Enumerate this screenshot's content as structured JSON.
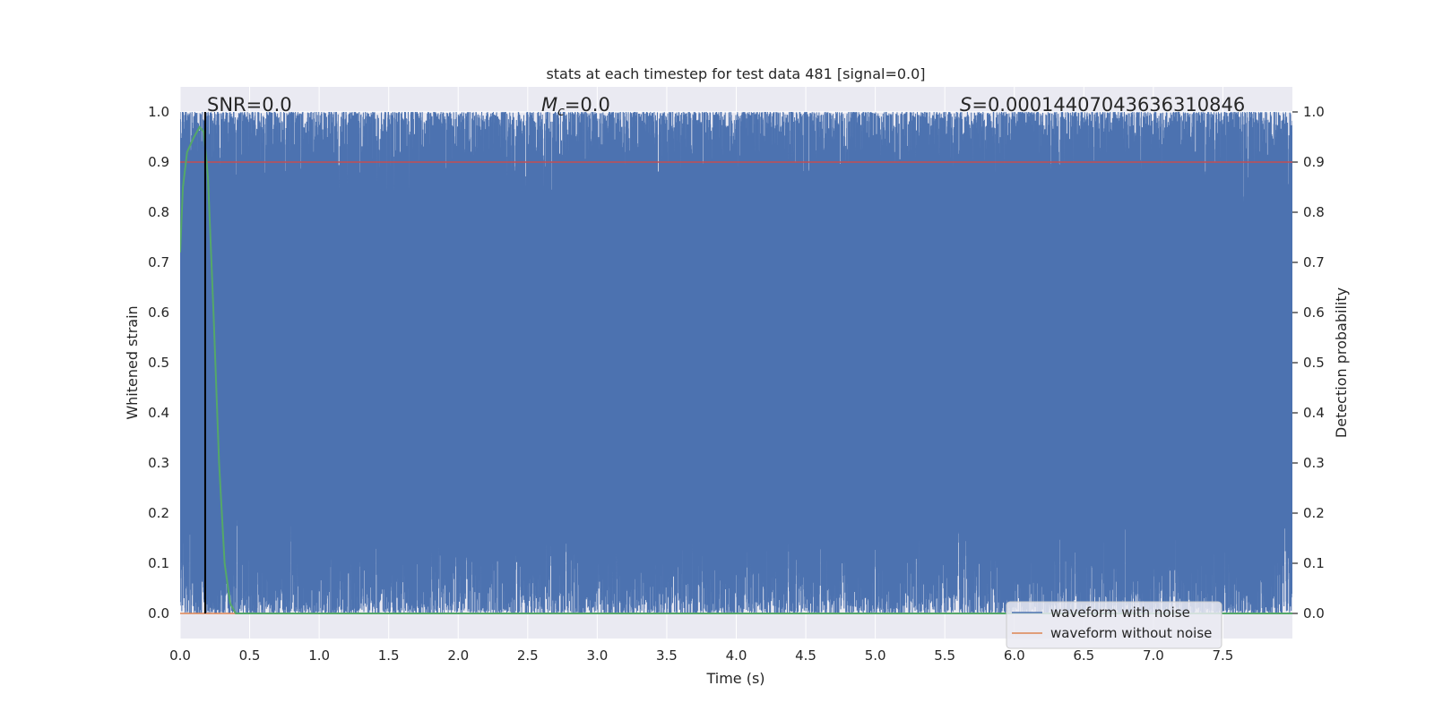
{
  "chart_data": {
    "type": "line",
    "title": "stats at each timestep for test data 481 [signal=0.0]",
    "xlabel": "Time (s)",
    "ylabel": "Whitened strain",
    "ylabel_right": "Detection probability",
    "xlim": [
      0.0,
      8.0
    ],
    "ylim": [
      -0.05,
      1.05
    ],
    "ylim_right": [
      -0.05,
      1.05
    ],
    "x_ticks": [
      0.0,
      0.5,
      1.0,
      1.5,
      2.0,
      2.5,
      3.0,
      3.5,
      4.0,
      4.5,
      5.0,
      5.5,
      6.0,
      6.5,
      7.0,
      7.5
    ],
    "x_tick_labels": [
      "0.0",
      "0.5",
      "1.0",
      "1.5",
      "2.0",
      "2.5",
      "3.0",
      "3.5",
      "4.0",
      "4.5",
      "5.0",
      "5.5",
      "6.0",
      "6.5",
      "7.0",
      "7.5"
    ],
    "y_ticks": [
      0.0,
      0.1,
      0.2,
      0.3,
      0.4,
      0.5,
      0.6,
      0.7,
      0.8,
      0.9,
      1.0
    ],
    "y_tick_labels": [
      "0.0",
      "0.1",
      "0.2",
      "0.3",
      "0.4",
      "0.5",
      "0.6",
      "0.7",
      "0.8",
      "0.9",
      "1.0"
    ],
    "grid": true,
    "legend_position": "lower right",
    "annotations": {
      "snr": "SNR=0.0",
      "mc_symbol": "M",
      "mc_sub": "c",
      "mc_value": "=0.0",
      "s_symbol": "S",
      "s_value": "=0.00014407043636310846"
    },
    "series": [
      {
        "name": "waveform with noise",
        "color": "#4c72b0",
        "description_values": "noise band spanning ~0.0 to ~1.0 across 0–8 s",
        "envelope_low": 0.0,
        "envelope_high": 1.0
      },
      {
        "name": "waveform without noise",
        "color": "#dd8452",
        "values_constant": 0.0
      },
      {
        "name": "detection_threshold",
        "color": "#c44e52",
        "values_constant": 0.9
      },
      {
        "name": "detection_probability",
        "color": "#55a868",
        "x": [
          0.0,
          0.02,
          0.05,
          0.1,
          0.14,
          0.17,
          0.2,
          0.24,
          0.28,
          0.32,
          0.36,
          0.4,
          1.0,
          8.0
        ],
        "y": [
          0.72,
          0.85,
          0.92,
          0.95,
          0.97,
          0.96,
          0.87,
          0.6,
          0.3,
          0.1,
          0.02,
          0.0,
          0.0,
          0.0
        ]
      },
      {
        "name": "event_marker",
        "color": "#000000",
        "x_value": 0.18
      }
    ],
    "legend": [
      "waveform with noise",
      "waveform without noise"
    ]
  }
}
